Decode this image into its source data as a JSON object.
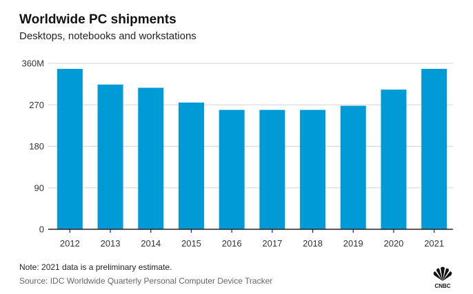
{
  "header": {
    "title": "Worldwide PC shipments",
    "subtitle": "Desktops, notebooks and workstations"
  },
  "footer": {
    "note": "Note: 2021 data is a preliminary estimate.",
    "source": "Source: IDC Worldwide Quarterly Personal Computer Device Tracker",
    "logo_text": "CNBC"
  },
  "colors": {
    "bar": "#009bd6",
    "grid": "#d4d4d4",
    "axis": "#222222"
  },
  "chart_data": {
    "type": "bar",
    "title": "Worldwide PC shipments",
    "subtitle": "Desktops, notebooks and workstations",
    "xlabel": "",
    "ylabel": "",
    "categories": [
      "2012",
      "2013",
      "2014",
      "2015",
      "2016",
      "2017",
      "2018",
      "2019",
      "2020",
      "2021"
    ],
    "values": [
      348,
      314,
      307,
      275,
      259,
      259,
      259,
      268,
      303,
      348
    ],
    "ylim": [
      0,
      360
    ],
    "yticks": [
      0,
      90,
      180,
      270,
      360
    ],
    "ytick_labels": [
      "0",
      "90",
      "180",
      "270",
      "360M"
    ],
    "grid": true,
    "legend": "none"
  }
}
